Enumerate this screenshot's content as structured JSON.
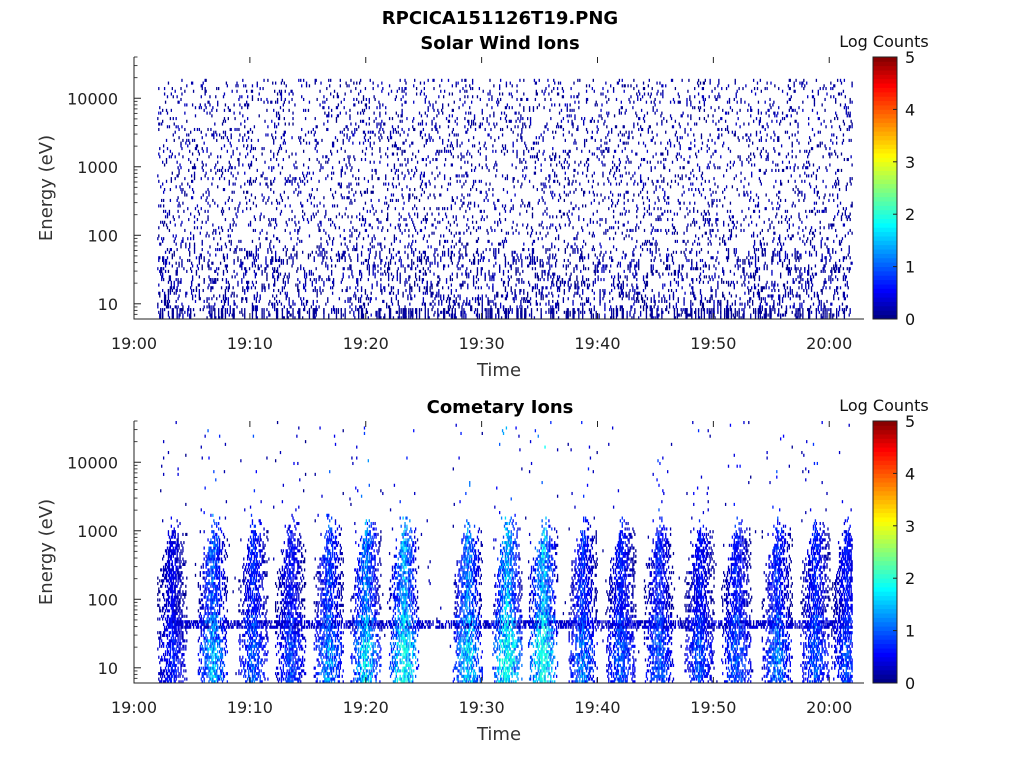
{
  "figure": {
    "title": "RPCICA151126T19.PNG"
  },
  "colors": {
    "colormap": "jet",
    "colormap_stops": [
      "#00007f",
      "#0000ff",
      "#00ffff",
      "#ffff00",
      "#ff0000",
      "#7f0000"
    ],
    "low_count": "#00007f"
  },
  "chart_data": [
    {
      "type": "heatmap",
      "title": "Solar Wind Ions",
      "xlabel": "Time",
      "ylabel": "Energy (eV)",
      "y_scale": "log",
      "y_range_ev": [
        6,
        40000
      ],
      "x_range": [
        "19:00",
        "20:03"
      ],
      "x_ticks": [
        "19:00",
        "19:10",
        "19:20",
        "19:30",
        "19:40",
        "19:50",
        "20:00"
      ],
      "y_ticks": [
        "10",
        "100",
        "1000",
        "10000"
      ],
      "colorbar": {
        "label": "Log Counts",
        "min": 0,
        "max": 5,
        "ticks": [
          "0",
          "1",
          "2",
          "3",
          "4",
          "5"
        ]
      },
      "data_start": "19:02",
      "data_end": "20:02",
      "value_range_log_counts": [
        0,
        0.3
      ],
      "description_of_content": "sparse single low-count pixels scattered over 6 eV – 20 keV",
      "seed": 7,
      "density": 0.16,
      "low_energy_density": 0.22
    },
    {
      "type": "heatmap",
      "title": "Cometary Ions",
      "xlabel": "Time",
      "ylabel": "Energy (eV)",
      "y_scale": "log",
      "y_range_ev": [
        6,
        40000
      ],
      "x_range": [
        "19:00",
        "20:03"
      ],
      "x_ticks": [
        "19:00",
        "19:10",
        "19:20",
        "19:30",
        "19:40",
        "19:50",
        "20:00"
      ],
      "y_ticks": [
        "10",
        "100",
        "1000",
        "10000"
      ],
      "colorbar": {
        "label": "Log Counts",
        "min": 0,
        "max": 5,
        "ticks": [
          "0",
          "1",
          "2",
          "3",
          "4",
          "5"
        ]
      },
      "data_start": "19:02",
      "data_end": "20:02",
      "burst_times": [
        "19:03.3",
        "19:06.8",
        "19:10.3",
        "19:13.5",
        "19:16.8",
        "19:20.0",
        "19:23.3",
        "19:28.8",
        "19:32.2",
        "19:35.3",
        "19:38.7",
        "19:42.0",
        "19:45.3",
        "19:48.8",
        "19:52.0",
        "19:55.5",
        "19:58.8",
        "20:01.5"
      ],
      "burst_peak_log_counts": [
        0.6,
        1.3,
        0.9,
        0.8,
        1.1,
        1.5,
        1.8,
        1.5,
        1.9,
        1.9,
        1.0,
        0.9,
        0.9,
        0.8,
        0.9,
        1.0,
        0.9,
        0.8
      ],
      "burst_high_energy_ev": 1000,
      "band_energy_ev": 40,
      "value_range_log_counts": [
        0,
        2
      ],
      "seed": 23
    }
  ]
}
